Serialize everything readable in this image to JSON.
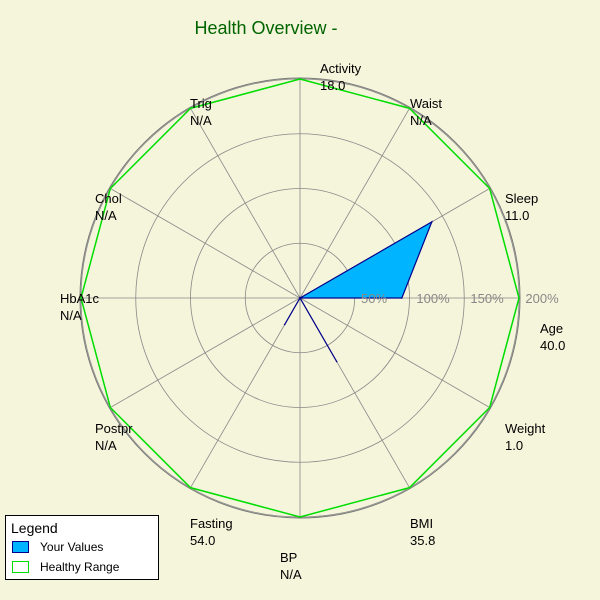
{
  "chart_data": {
    "type": "radar",
    "title": "Health Overview -",
    "radial_ticks": [
      {
        "value": 50,
        "label": "50%"
      },
      {
        "value": 100,
        "label": "100%"
      },
      {
        "value": 150,
        "label": "150%"
      },
      {
        "value": 200,
        "label": "200%"
      }
    ],
    "rmax": 200,
    "axes": [
      {
        "name": "Activity",
        "value_text": "18.0",
        "percent": 0
      },
      {
        "name": "Waist",
        "value_text": "N/A",
        "percent": 0
      },
      {
        "name": "Sleep",
        "value_text": "11.0",
        "percent": 139
      },
      {
        "name": "Age",
        "value_text": "40.0",
        "percent": 93
      },
      {
        "name": "Weight",
        "value_text": "1.0",
        "percent": 0
      },
      {
        "name": "BMI",
        "value_text": "35.8",
        "percent": 67
      },
      {
        "name": "BP",
        "value_text": "N/A",
        "percent": 0
      },
      {
        "name": "Fasting",
        "value_text": "54.0",
        "percent": 28
      },
      {
        "name": "Postpr",
        "value_text": "N/A",
        "percent": 0
      },
      {
        "name": "HbA1c",
        "value_text": "N/A",
        "percent": 0
      },
      {
        "name": "Chol",
        "value_text": "N/A",
        "percent": 0
      },
      {
        "name": "Trig",
        "value_text": "N/A",
        "percent": 0
      }
    ],
    "series": [
      {
        "name": "Your Values",
        "fill": "#00b4ff",
        "stroke": "#00008b"
      },
      {
        "name": "Healthy Range",
        "fill": "none",
        "stroke": "#00dd00",
        "percent": 200
      }
    ],
    "grid": true
  },
  "legend": {
    "title": "Legend",
    "items": [
      {
        "label": "Your Values",
        "swatch_fill": "#00b4ff",
        "swatch_stroke": "#00008b"
      },
      {
        "label": "Healthy Range",
        "swatch_fill": "#ffffff",
        "swatch_stroke": "#00dd00"
      }
    ]
  }
}
